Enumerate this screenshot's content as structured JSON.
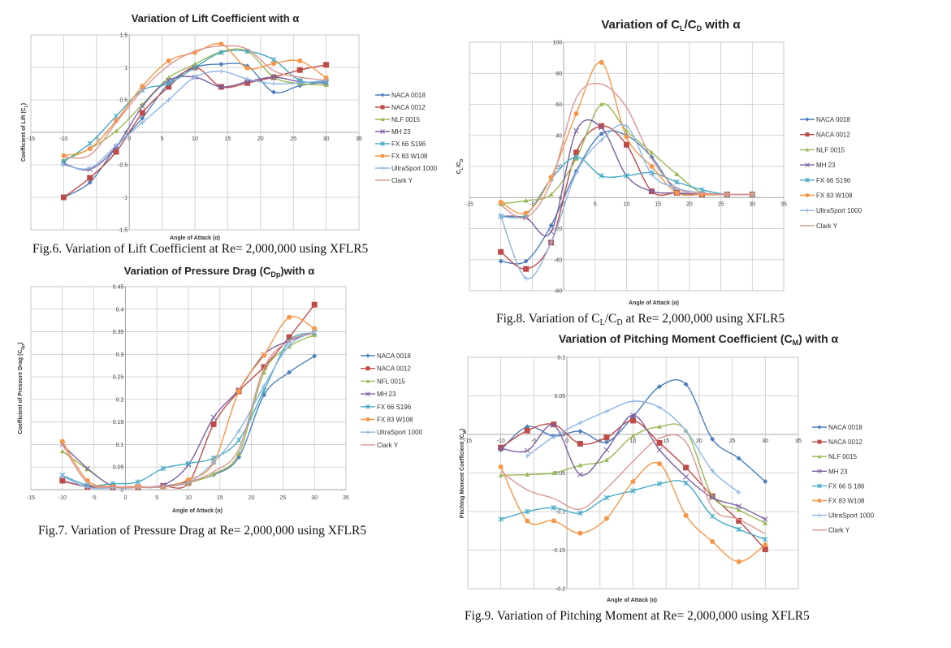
{
  "chart_data": [
    {
      "type": "line",
      "title_parts": [
        {
          "t": "Variation of Lift Coefficient with α"
        }
      ],
      "caption_parts": [
        {
          "t": "Fig.6. Variation of Lift Coefficient at Re= 2,000,000 using XFLR5"
        }
      ],
      "xlabel": "Angle of Attack (α)",
      "ylabel_parts": [
        {
          "t": "Coefficient of Lift (C"
        },
        {
          "t": "L",
          "sub": true
        },
        {
          "t": ")"
        }
      ],
      "xlim": [
        -15,
        35
      ],
      "xticks": [
        -15,
        -10,
        -5,
        0,
        5,
        10,
        15,
        20,
        25,
        30,
        35
      ],
      "ylim": [
        -1.5,
        1.5
      ],
      "yticks": [
        -1.5,
        -1,
        -0.5,
        0,
        0.5,
        1,
        1.5
      ],
      "grid": true,
      "legend": "right",
      "x": [
        -10,
        -6,
        -2,
        2,
        6,
        10,
        14,
        18,
        22,
        26,
        30
      ],
      "series": [
        {
          "name": "NACA 0018",
          "values": [
            -1,
            -0.77,
            -0.23,
            0.22,
            0.75,
            1.0,
            1.05,
            1.02,
            0.62,
            0.72,
            0.78
          ]
        },
        {
          "name": "NACA 0012",
          "values": [
            -1,
            -0.7,
            -0.3,
            0.3,
            0.7,
            1.0,
            0.7,
            0.76,
            0.85,
            0.96,
            1.04
          ]
        },
        {
          "name": "NLF 0015",
          "values": [
            -0.43,
            -0.25,
            0.02,
            0.43,
            0.84,
            1.05,
            1.24,
            1.25,
            0.85,
            0.75,
            0.73
          ]
        },
        {
          "name": "MH 23",
          "values": [
            -0.48,
            -0.57,
            -0.22,
            0.4,
            0.8,
            0.85,
            0.7,
            0.78,
            0.85,
            0.78,
            0.76
          ]
        },
        {
          "name": "FX 66 S196",
          "values": [
            -0.45,
            -0.17,
            0.25,
            0.65,
            0.75,
            1.0,
            1.23,
            1.25,
            1.12,
            0.8,
            0.78
          ]
        },
        {
          "name": "FX 83 W108",
          "values": [
            -0.36,
            -0.25,
            0.18,
            0.71,
            1.1,
            1.23,
            1.36,
            0.99,
            1.06,
            1.1,
            0.84
          ]
        },
        {
          "name": "UltraSport 1000",
          "values": [
            -0.5,
            -0.55,
            -0.2,
            0.15,
            0.5,
            0.85,
            0.94,
            0.82,
            0.75,
            0.76,
            0.8
          ]
        },
        {
          "name": "Clark Y",
          "values": [
            -0.38,
            -0.35,
            0.15,
            0.65,
            1.03,
            1.25,
            1.33,
            1.28,
            0.95,
            0.85,
            0.8
          ]
        }
      ]
    },
    {
      "type": "line",
      "title_parts": [
        {
          "t": "Variation of Pressure Drag (C"
        },
        {
          "t": "Dp",
          "sub": true
        },
        {
          "t": ")with α"
        }
      ],
      "caption_parts": [
        {
          "t": "Fig.7. Variation of Pressure Drag at Re= 2,000,000 using XFLR5"
        }
      ],
      "xlabel": "Angle of Attack (α)",
      "ylabel_parts": [
        {
          "t": "Coefficient of Pressure Drag (C"
        },
        {
          "t": "Dp",
          "sub": true
        },
        {
          "t": ")"
        }
      ],
      "xlim": [
        -15,
        35
      ],
      "xticks": [
        -15,
        -10,
        -5,
        0,
        5,
        10,
        15,
        20,
        25,
        30,
        35
      ],
      "ylim": [
        0,
        0.45
      ],
      "yticks": [
        0,
        0.05,
        0.1,
        0.15,
        0.2,
        0.25,
        0.3,
        0.35,
        0.4,
        0.45
      ],
      "grid": true,
      "legend": "right",
      "x": [
        -10,
        -6,
        -2,
        2,
        6,
        10,
        14,
        18,
        22,
        26,
        30
      ],
      "series": [
        {
          "name": "NACA 0018",
          "values": [
            0.018,
            0.008,
            0.005,
            0.005,
            0.008,
            0.018,
            0.033,
            0.072,
            0.21,
            0.26,
            0.296
          ]
        },
        {
          "name": "NACA 0012",
          "values": [
            0.02,
            0.006,
            0.005,
            0.005,
            0.008,
            0.015,
            0.145,
            0.218,
            0.272,
            0.338,
            0.41
          ]
        },
        {
          "name": "NFL 0015",
          "values": [
            0.085,
            0.045,
            0.008,
            0.005,
            0.006,
            0.015,
            0.035,
            0.08,
            0.26,
            0.317,
            0.343
          ]
        },
        {
          "name": "MH 23",
          "values": [
            0.1,
            0.047,
            0.008,
            0.005,
            0.01,
            0.055,
            0.16,
            0.222,
            0.3,
            0.33,
            0.348
          ]
        },
        {
          "name": "FX 66 S196",
          "values": [
            0.032,
            0.01,
            0.013,
            0.017,
            0.047,
            0.058,
            0.07,
            0.11,
            0.22,
            0.33,
            0.348
          ]
        },
        {
          "name": "FX 83 W108",
          "values": [
            0.107,
            0.02,
            0.007,
            0.007,
            0.006,
            0.022,
            0.06,
            0.218,
            0.298,
            0.382,
            0.357
          ]
        },
        {
          "name": "UltraSport 1000",
          "values": [
            0.03,
            0.005,
            0.004,
            0.005,
            0.007,
            0.016,
            0.06,
            0.13,
            0.23,
            0.32,
            0.35
          ]
        },
        {
          "name": "Clark Y",
          "values": [
            0.1,
            0.015,
            0.006,
            0.005,
            0.006,
            0.016,
            0.04,
            0.09,
            0.27,
            0.33,
            0.348
          ]
        }
      ]
    },
    {
      "type": "line",
      "title_parts": [
        {
          "t": "Variation of C"
        },
        {
          "t": "L",
          "sub": true
        },
        {
          "t": "/C"
        },
        {
          "t": "D",
          "sub": true
        },
        {
          "t": " with α"
        }
      ],
      "caption_parts": [
        {
          "t": "Fig.8. Variation of C"
        },
        {
          "t": "L",
          "sub": true
        },
        {
          "t": "/C"
        },
        {
          "t": "D",
          "sub": true
        },
        {
          "t": " at Re= 2,000,000 using XFLR5"
        }
      ],
      "xlabel": "Angle of Attack (α)",
      "ylabel_parts": [
        {
          "t": "C"
        },
        {
          "t": "L",
          "sub": true
        },
        {
          "t": "/C"
        },
        {
          "t": "D",
          "sub": true
        }
      ],
      "xlim": [
        -15,
        35
      ],
      "xticks": [
        -15,
        -10,
        -5,
        0,
        5,
        10,
        15,
        20,
        25,
        30,
        35
      ],
      "ylim": [
        -60,
        100
      ],
      "yticks": [
        -60,
        -40,
        -20,
        0,
        20,
        40,
        60,
        80,
        100
      ],
      "grid": true,
      "legend": "right",
      "x": [
        -10,
        -6,
        -2,
        2,
        6,
        10,
        14,
        18,
        22,
        26,
        30
      ],
      "series": [
        {
          "name": "NACA 0018",
          "values": [
            -41,
            -41,
            -18,
            17,
            41,
            40,
            26,
            4,
            2,
            2,
            2
          ]
        },
        {
          "name": "NACA 0012",
          "values": [
            -35,
            -46,
            -29,
            29,
            46,
            34,
            4,
            3,
            2,
            2,
            2
          ]
        },
        {
          "name": "NLF 0015",
          "values": [
            -4,
            -2,
            2,
            25,
            60,
            43,
            29,
            15,
            3,
            2,
            2
          ]
        },
        {
          "name": "MH 23",
          "values": [
            -12,
            -13,
            -22,
            43,
            45,
            14,
            4,
            3,
            2,
            2,
            2
          ]
        },
        {
          "name": "FX 66 S196",
          "values": [
            -12,
            -11,
            12,
            26,
            14,
            14,
            16,
            10,
            5,
            2,
            2
          ]
        },
        {
          "name": "FX 83 W108",
          "values": [
            -3,
            -10,
            13,
            54,
            87,
            39,
            20,
            3,
            2,
            2,
            2
          ]
        },
        {
          "name": "UltraSport 1000",
          "values": [
            -12,
            -52,
            -29,
            16,
            37,
            46,
            15,
            6,
            3,
            2,
            2
          ]
        },
        {
          "name": "Clark Y",
          "values": [
            -5,
            -13,
            10,
            64,
            73,
            58,
            25,
            6,
            3,
            2,
            2
          ]
        }
      ]
    },
    {
      "type": "line",
      "title_parts": [
        {
          "t": "Variation of Pitching Moment Coefficient (C"
        },
        {
          "t": "M",
          "sub": true
        },
        {
          "t": ") with α"
        }
      ],
      "caption_parts": [
        {
          "t": "Fig.9. Variation of Pitching Moment at Re= 2,000,000 using XFLR5"
        }
      ],
      "xlabel": "Angle of Attack (α)",
      "ylabel_parts": [
        {
          "t": "Pitching Moment Coefficient (C"
        },
        {
          "t": "M",
          "sub": true
        },
        {
          "t": ")"
        }
      ],
      "xlim": [
        -15,
        35
      ],
      "xticks": [
        -15,
        -10,
        -5,
        0,
        5,
        10,
        15,
        20,
        25,
        30,
        35
      ],
      "ylim": [
        -0.2,
        0.1
      ],
      "yticks": [
        -0.2,
        -0.15,
        -0.1,
        -0.05,
        0,
        0.05,
        0.1
      ],
      "grid": true,
      "legend": "right",
      "x": [
        -10,
        -6,
        -2,
        2,
        6,
        10,
        14,
        18,
        22,
        26,
        30
      ],
      "series": [
        {
          "name": "NACA 0018",
          "values": [
            -0.02,
            0.01,
            -0.002,
            0.004,
            -0.01,
            0.023,
            0.062,
            0.065,
            -0.006,
            -0.031,
            -0.061
          ]
        },
        {
          "name": "NACA 0012",
          "values": [
            -0.017,
            0.005,
            0.013,
            -0.012,
            -0.004,
            0.018,
            -0.011,
            -0.043,
            -0.08,
            -0.112,
            -0.149
          ]
        },
        {
          "name": "NLF 0015",
          "values": [
            -0.053,
            -0.052,
            -0.05,
            -0.04,
            -0.033,
            -0.002,
            0.01,
            0.005,
            -0.08,
            -0.098,
            -0.115
          ]
        },
        {
          "name": "MH 23",
          "values": [
            -0.018,
            -0.021,
            0.012,
            -0.052,
            -0.02,
            0.025,
            -0.02,
            -0.055,
            -0.082,
            -0.093,
            -0.11
          ]
        },
        {
          "name": "FX 66 S 186",
          "values": [
            -0.11,
            -0.1,
            -0.095,
            -0.102,
            -0.082,
            -0.073,
            -0.064,
            -0.063,
            -0.106,
            -0.123,
            -0.136
          ]
        },
        {
          "name": "FX 83 W108",
          "values": [
            -0.042,
            -0.112,
            -0.112,
            -0.128,
            -0.109,
            -0.061,
            -0.038,
            -0.105,
            -0.139,
            -0.165,
            -0.143
          ]
        },
        {
          "name": "UltraSport 1000",
          "values": [
            null,
            -0.028,
            -0.003,
            0.015,
            0.03,
            0.043,
            0.035,
            0.005,
            -0.047,
            -0.075,
            null
          ]
        },
        {
          "name": "Clark Y",
          "values": [
            -0.048,
            -0.072,
            -0.083,
            -0.097,
            -0.07,
            -0.035,
            -0.005,
            -0.01,
            -0.095,
            -0.11,
            -0.129
          ]
        }
      ]
    }
  ],
  "series_style": {
    "colors": [
      "#4a7ebb",
      "#be4b48",
      "#98b954",
      "#7d60a0",
      "#46aac5",
      "#f79646",
      "#8eb4e3",
      "#d99694"
    ],
    "markers": [
      "diamond",
      "square",
      "triangle",
      "x",
      "star",
      "circle",
      "plus",
      "none"
    ]
  }
}
